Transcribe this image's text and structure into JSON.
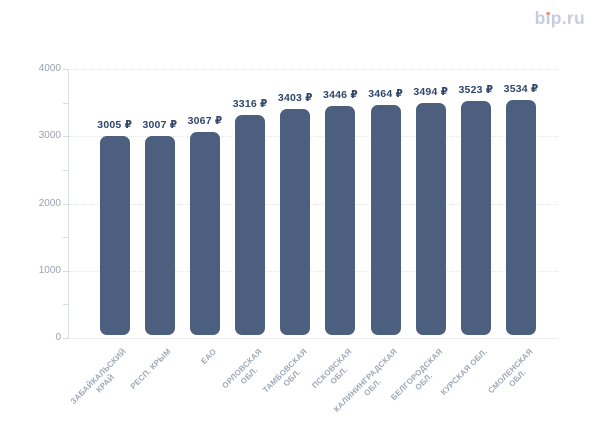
{
  "header": {
    "logo_text": "bip.ru",
    "logo_color": "#c7cbdd",
    "logo_dot_color": "#f0917f"
  },
  "chart_data": {
    "type": "bar",
    "title": "",
    "xlabel": "",
    "ylabel": "",
    "categories": [
      "ЗАБАЙКАЛЬСКИЙ КРАЙ",
      "РЕСП. КРЫМ",
      "ЕАО",
      "ОРЛОВСКАЯ ОБЛ.",
      "ТАМБОВСКАЯ ОБЛ.",
      "ПСКОВСКАЯ ОБЛ.",
      "КАЛИНИНГРАДСКАЯ ОБЛ.",
      "БЕЛГОРОДСКАЯ ОБЛ.",
      "КУРСКАЯ ОБЛ.",
      "СМОЛЕНСКАЯ ОБЛ."
    ],
    "category_lines": [
      [
        "ЗАБАЙКАЛЬСКИЙ",
        "КРАЙ"
      ],
      [
        "РЕСП. КРЫМ"
      ],
      [
        "ЕАО"
      ],
      [
        "ОРЛОВСКАЯ",
        "ОБЛ."
      ],
      [
        "ТАМБОВСКАЯ",
        "ОБЛ."
      ],
      [
        "ПСКОВСКАЯ",
        "ОБЛ."
      ],
      [
        "КАЛИНИНГРАДСКАЯ",
        "ОБЛ."
      ],
      [
        "БЕЛГОРОДСКАЯ",
        "ОБЛ."
      ],
      [
        "КУРСКАЯ ОБЛ."
      ],
      [
        "СМОЛЕНСКАЯ",
        "ОБЛ."
      ]
    ],
    "values": [
      3005,
      3007,
      3067,
      3316,
      3403,
      3446,
      3464,
      3494,
      3523,
      3534
    ],
    "value_labels": [
      "3005 ₽",
      "3007 ₽",
      "3067 ₽",
      "3316 ₽",
      "3403 ₽",
      "3446 ₽",
      "3464 ₽",
      "3494 ₽",
      "3523 ₽",
      "3534 ₽"
    ],
    "currency_suffix": "₽",
    "ylim": [
      0,
      4000
    ],
    "y_axis": {
      "values": [
        0,
        1000,
        2000,
        3000,
        4000
      ],
      "labels": [
        "0",
        "1000",
        "2000",
        "3000",
        "4000"
      ],
      "minor_step": 500
    },
    "grid": "horizontal dotted lines at major ticks",
    "legend": "none",
    "bar_color": "#4c5f7f",
    "value_label_color": "#31466b",
    "y_label_color": "#99a1b0",
    "x_label_color": "#a0a8b6"
  }
}
